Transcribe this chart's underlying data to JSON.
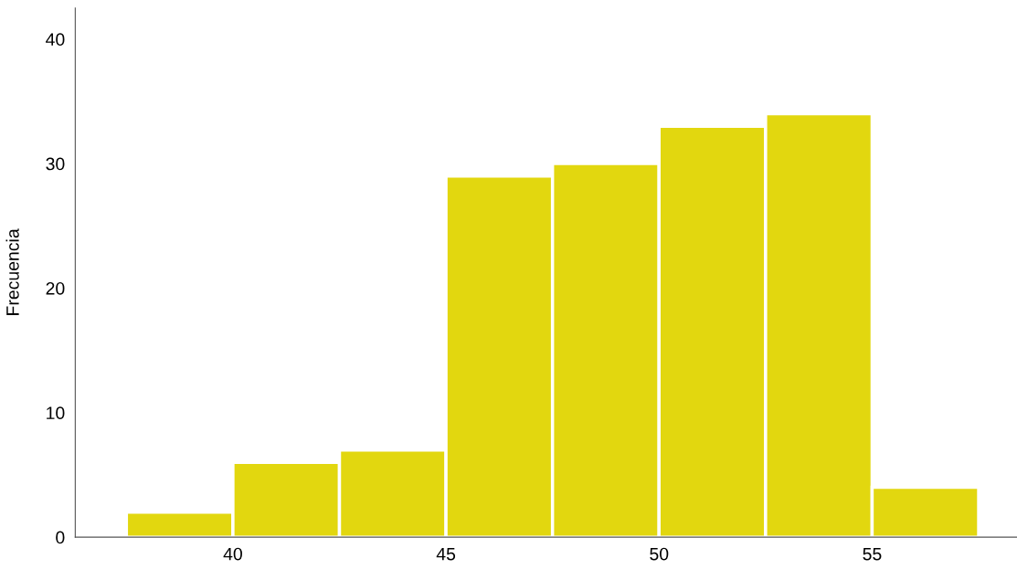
{
  "chart_data": {
    "type": "histogram",
    "ylabel": "Frecuencia",
    "bins": [
      37.5,
      40,
      42.5,
      45,
      47.5,
      50,
      52.5,
      55,
      57.5
    ],
    "values": [
      2,
      6,
      7,
      29,
      30,
      33,
      34,
      4
    ],
    "color": "#e2d70f",
    "xlim": [
      36.3,
      58.4
    ],
    "xticks": [
      40,
      45,
      50,
      55
    ],
    "ylim": [
      0,
      42.5
    ],
    "yticks": [
      0,
      10,
      20,
      30,
      40
    ],
    "grid": false
  }
}
